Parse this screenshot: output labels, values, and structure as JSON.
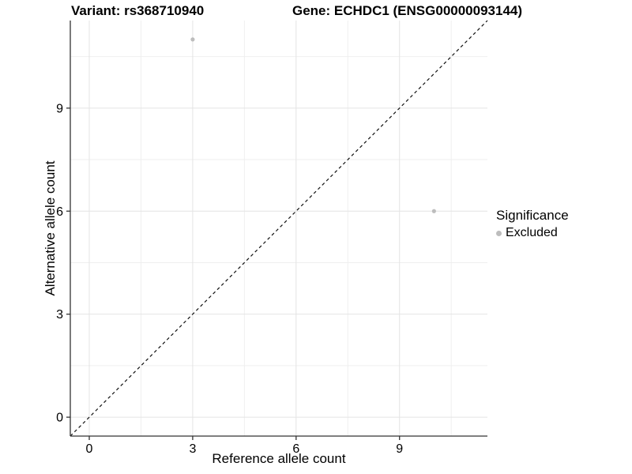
{
  "header": {
    "variant_title": "Variant: rs368710940",
    "gene_title": "Gene: ECHDC1 (ENSG00000093144)"
  },
  "legend": {
    "title": "Significance",
    "items": [
      {
        "label": "Excluded",
        "color": "#bdbdbd"
      }
    ]
  },
  "colors": {
    "background": "#ffffff",
    "point": "#bdbdbd",
    "grid_major": "#e4e4e4",
    "grid_minor": "#efefef",
    "axis_line": "#333333",
    "tick_text": "#000000",
    "dashed_line": "#111111"
  },
  "chart_data": {
    "type": "scatter",
    "title_variant": "Variant: rs368710940",
    "title_gene": "Gene: ECHDC1 (ENSG00000093144)",
    "xlabel": "Reference allele count",
    "ylabel": "Alternative allele count",
    "xlim": [
      -0.55,
      11.55
    ],
    "ylim": [
      -0.55,
      11.55
    ],
    "x_ticks": [
      0,
      3,
      6,
      9
    ],
    "y_ticks": [
      0,
      3,
      6,
      9
    ],
    "x_minor_ticks": [
      1.5,
      4.5,
      7.5,
      10.5
    ],
    "y_minor_ticks": [
      1.5,
      4.5,
      7.5,
      10.5
    ],
    "grid": true,
    "legend_position": "right",
    "series": [
      {
        "name": "Excluded",
        "color": "#bdbdbd",
        "points": [
          [
            3,
            11
          ],
          [
            10,
            6
          ]
        ]
      }
    ],
    "reference_line": {
      "type": "identity y=x",
      "style": "dashed",
      "color": "#111111"
    }
  }
}
